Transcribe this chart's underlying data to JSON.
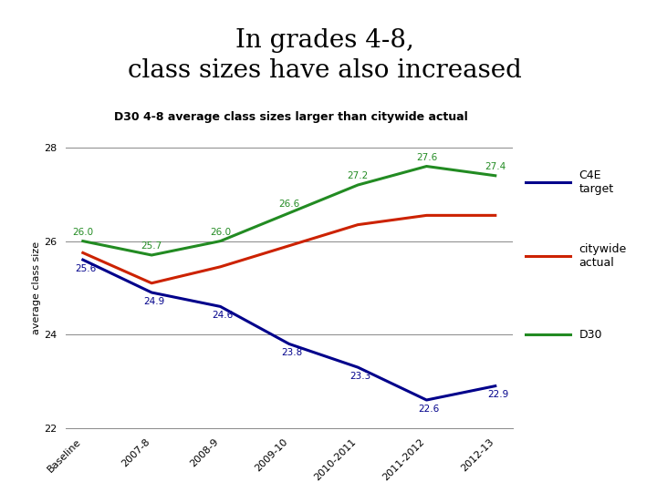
{
  "title": "In grades 4-8,\nclass sizes have also increased",
  "subtitle": "D30 4-8 average class sizes larger than citywide actual",
  "title_bg": "#c5dce8",
  "x_labels": [
    "Baseline",
    "2007-8",
    "2008-9",
    "2009-10",
    "2010-2011",
    "2011-2012",
    "2012-13"
  ],
  "c4e_target": [
    25.6,
    24.9,
    24.6,
    23.8,
    23.3,
    22.6,
    22.9
  ],
  "c4e_labels": [
    "25.6",
    "24.9",
    "24.6",
    "23.8",
    "23.3",
    "22.6",
    "22.9"
  ],
  "citywide_actual": [
    25.75,
    25.1,
    25.45,
    25.9,
    26.35,
    26.55,
    26.55
  ],
  "d30": [
    26.0,
    25.7,
    26.0,
    26.6,
    27.2,
    27.6,
    27.4
  ],
  "d30_labels": [
    "26.0",
    "25.7",
    "26.0",
    "26.6",
    "27.2",
    "27.6",
    "27.4"
  ],
  "c4e_color": "#00008B",
  "citywide_color": "#CC2200",
  "d30_color": "#228B22",
  "ylim": [
    22,
    28
  ],
  "yticks": [
    22,
    24,
    26,
    28
  ],
  "ylabel": "average class size",
  "legend_labels": [
    "C4E\ntarget",
    "citywide\nactual",
    "D30"
  ]
}
